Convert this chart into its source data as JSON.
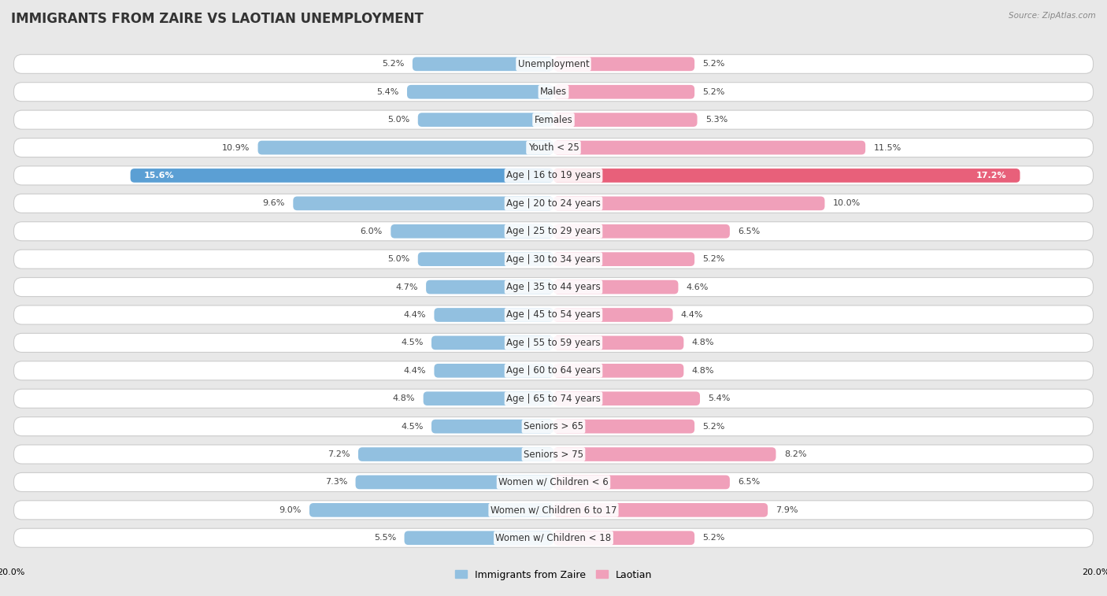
{
  "title": "IMMIGRANTS FROM ZAIRE VS LAOTIAN UNEMPLOYMENT",
  "source": "Source: ZipAtlas.com",
  "categories": [
    "Unemployment",
    "Males",
    "Females",
    "Youth < 25",
    "Age | 16 to 19 years",
    "Age | 20 to 24 years",
    "Age | 25 to 29 years",
    "Age | 30 to 34 years",
    "Age | 35 to 44 years",
    "Age | 45 to 54 years",
    "Age | 55 to 59 years",
    "Age | 60 to 64 years",
    "Age | 65 to 74 years",
    "Seniors > 65",
    "Seniors > 75",
    "Women w/ Children < 6",
    "Women w/ Children 6 to 17",
    "Women w/ Children < 18"
  ],
  "zaire_values": [
    5.2,
    5.4,
    5.0,
    10.9,
    15.6,
    9.6,
    6.0,
    5.0,
    4.7,
    4.4,
    4.5,
    4.4,
    4.8,
    4.5,
    7.2,
    7.3,
    9.0,
    5.5
  ],
  "laotian_values": [
    5.2,
    5.2,
    5.3,
    11.5,
    17.2,
    10.0,
    6.5,
    5.2,
    4.6,
    4.4,
    4.8,
    4.8,
    5.4,
    5.2,
    8.2,
    6.5,
    7.9,
    5.2
  ],
  "zaire_color": "#92C0E0",
  "laotian_color": "#F0A0BA",
  "zaire_highlight_color": "#5B9FD4",
  "laotian_highlight_color": "#E8607A",
  "max_value": 20.0,
  "background_color": "#e8e8e8",
  "row_bg_color": "#f5f5f5",
  "row_border_color": "#d0d0d0",
  "title_fontsize": 12,
  "label_fontsize": 8.5,
  "value_fontsize": 8.0
}
